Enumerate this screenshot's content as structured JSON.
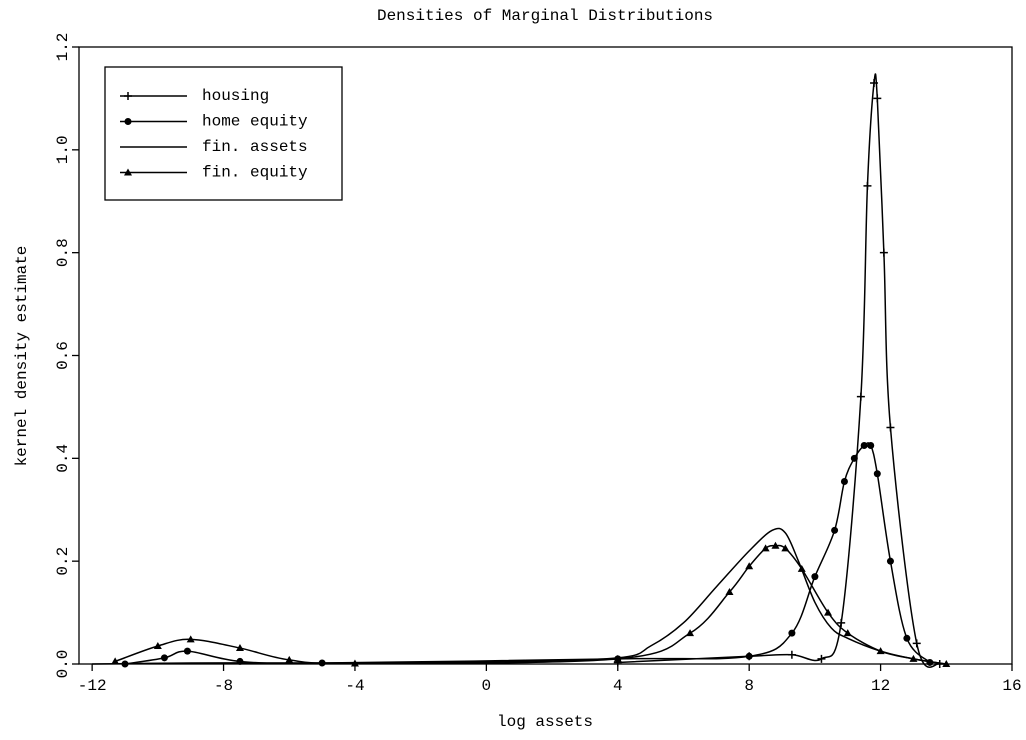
{
  "chart_data": {
    "type": "line",
    "title": "Densities of Marginal Distributions",
    "x_label": "log assets",
    "y_label": "kernel density estimate",
    "xlim": [
      -12.4,
      16
    ],
    "ylim": [
      0,
      1.2
    ],
    "xticks": [
      -12,
      -8,
      -4,
      0,
      4,
      8,
      12,
      16
    ],
    "yticks": [
      {
        "value": 0,
        "label": "0.0"
      },
      0.2,
      0.4,
      0.6,
      0.8,
      {
        "value": 1,
        "label": "1.0"
      },
      1.2
    ],
    "legend": "upper left",
    "series": [
      {
        "name": "housing",
        "color": "#000000",
        "marker": "plus",
        "x": [
          4,
          8,
          9.3,
          10.2,
          10.8,
          11.4,
          11.6,
          11.8,
          11.9,
          12.1,
          12.3,
          13.1,
          13.8
        ],
        "values": [
          0.003,
          0.015,
          0.018,
          0.01,
          0.08,
          0.52,
          0.93,
          1.13,
          1.1,
          0.8,
          0.46,
          0.04,
          0
        ]
      },
      {
        "name": "home equity",
        "color": "#000000",
        "marker": "dot",
        "x": [
          -11,
          -9.8,
          -9.1,
          -7.5,
          -5,
          4,
          8,
          9.3,
          10,
          10.6,
          10.9,
          11.2,
          11.5,
          11.7,
          11.9,
          12.3,
          12.8,
          13.5
        ],
        "values": [
          0,
          0.012,
          0.025,
          0.005,
          0.002,
          0.01,
          0.015,
          0.06,
          0.17,
          0.26,
          0.355,
          0.4,
          0.425,
          0.425,
          0.37,
          0.2,
          0.05,
          0.003
        ]
      },
      {
        "name": "fin. assets",
        "color": "#000000",
        "marker": "none",
        "x": [
          -12,
          -9,
          -7,
          -5,
          0,
          4,
          5,
          6,
          7,
          8,
          8.7,
          9.1,
          9.5,
          10,
          10.5,
          11,
          12,
          13,
          14
        ],
        "values": [
          0,
          0.002,
          0.002,
          0.002,
          0.004,
          0.012,
          0.035,
          0.08,
          0.15,
          0.22,
          0.26,
          0.255,
          0.2,
          0.12,
          0.07,
          0.05,
          0.025,
          0.01,
          0
        ]
      },
      {
        "name": "fin. equity",
        "color": "#000000",
        "marker": "triangle",
        "x": [
          -11.3,
          -10,
          -9,
          -7.5,
          -6,
          -4,
          4,
          6.2,
          7.4,
          8,
          8.5,
          8.8,
          9.1,
          9.6,
          10.4,
          11,
          12,
          13,
          14
        ],
        "values": [
          0.005,
          0.035,
          0.048,
          0.031,
          0.008,
          0.001,
          0.01,
          0.06,
          0.14,
          0.19,
          0.225,
          0.23,
          0.225,
          0.185,
          0.1,
          0.06,
          0.025,
          0.01,
          0
        ]
      }
    ]
  }
}
